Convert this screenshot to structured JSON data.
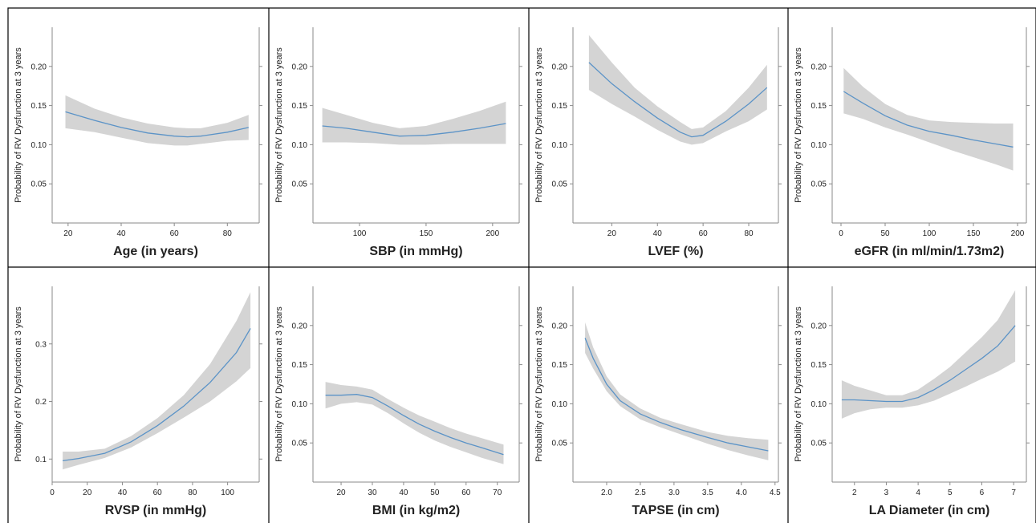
{
  "colors": {
    "band": "#d4d4d4",
    "line": "#5b93c7",
    "axis": "#8a8a8a",
    "text": "#222222",
    "border": "#000000"
  },
  "chart_data": [
    {
      "type": "line",
      "xlabel": "Age (in years)",
      "ylabel": "Probability of RV Dysfunction at 3 years",
      "xlim": [
        14,
        92
      ],
      "ylim": [
        0,
        0.25
      ],
      "xticks": [
        20,
        40,
        60,
        80
      ],
      "xtick_labels": [
        "20",
        "40",
        "60",
        "80"
      ],
      "yticks": [
        0.05,
        0.1,
        0.15,
        0.2
      ],
      "ytick_labels": [
        "0.05",
        "0.10",
        "0.15",
        "0.20"
      ],
      "series": [
        {
          "x": [
            19,
            30,
            40,
            50,
            60,
            65,
            70,
            80,
            88
          ],
          "y": [
            0.142,
            0.131,
            0.122,
            0.115,
            0.111,
            0.11,
            0.111,
            0.116,
            0.122
          ],
          "lower": [
            0.121,
            0.116,
            0.109,
            0.102,
            0.099,
            0.099,
            0.101,
            0.105,
            0.106
          ],
          "upper": [
            0.163,
            0.146,
            0.135,
            0.127,
            0.122,
            0.121,
            0.121,
            0.128,
            0.138
          ]
        }
      ]
    },
    {
      "type": "line",
      "xlabel": "SBP (in mmHg)",
      "ylabel": "Probability of RV Dysfunction at 3 years",
      "xlim": [
        65,
        220
      ],
      "ylim": [
        0,
        0.25
      ],
      "xticks": [
        100,
        150,
        200
      ],
      "xtick_labels": [
        "100",
        "150",
        "200"
      ],
      "yticks": [
        0.05,
        0.1,
        0.15,
        0.2
      ],
      "ytick_labels": [
        "0.05",
        "0.10",
        "0.15",
        "0.20"
      ],
      "series": [
        {
          "x": [
            72,
            90,
            110,
            130,
            150,
            170,
            190,
            210
          ],
          "y": [
            0.124,
            0.121,
            0.116,
            0.111,
            0.112,
            0.116,
            0.121,
            0.127
          ],
          "lower": [
            0.103,
            0.103,
            0.102,
            0.1,
            0.1,
            0.101,
            0.101,
            0.101
          ],
          "upper": [
            0.147,
            0.138,
            0.128,
            0.121,
            0.124,
            0.133,
            0.143,
            0.155
          ]
        }
      ]
    },
    {
      "type": "line",
      "xlabel": "LVEF (%)",
      "ylabel": "Probability of RV Dysfunction at 3 years",
      "xlim": [
        3,
        93
      ],
      "ylim": [
        0,
        0.25
      ],
      "xticks": [
        20,
        40,
        60,
        80
      ],
      "xtick_labels": [
        "20",
        "40",
        "60",
        "80"
      ],
      "yticks": [
        0.05,
        0.1,
        0.15,
        0.2
      ],
      "ytick_labels": [
        "0.05",
        "0.10",
        "0.15",
        "0.20"
      ],
      "series": [
        {
          "x": [
            10,
            20,
            30,
            40,
            50,
            55,
            60,
            70,
            80,
            88
          ],
          "y": [
            0.205,
            0.178,
            0.155,
            0.134,
            0.116,
            0.11,
            0.112,
            0.13,
            0.152,
            0.173
          ],
          "lower": [
            0.17,
            0.152,
            0.136,
            0.119,
            0.104,
            0.1,
            0.102,
            0.117,
            0.13,
            0.145
          ],
          "upper": [
            0.24,
            0.205,
            0.173,
            0.149,
            0.129,
            0.12,
            0.122,
            0.143,
            0.173,
            0.202
          ]
        }
      ]
    },
    {
      "type": "line",
      "xlabel": "eGFR (in ml/min/1.73m2)",
      "ylabel": "Probability of RV Dysfunction at 3 years",
      "xlim": [
        -10,
        210
      ],
      "ylim": [
        0,
        0.25
      ],
      "xticks": [
        0,
        50,
        100,
        150,
        200
      ],
      "xtick_labels": [
        "0",
        "50",
        "100",
        "150",
        "200"
      ],
      "yticks": [
        0.05,
        0.1,
        0.15,
        0.2
      ],
      "ytick_labels": [
        "0.05",
        "0.10",
        "0.15",
        "0.20"
      ],
      "series": [
        {
          "x": [
            3,
            25,
            50,
            75,
            100,
            125,
            150,
            175,
            195
          ],
          "y": [
            0.168,
            0.153,
            0.137,
            0.125,
            0.117,
            0.112,
            0.106,
            0.101,
            0.097
          ],
          "lower": [
            0.14,
            0.133,
            0.122,
            0.113,
            0.103,
            0.093,
            0.084,
            0.075,
            0.067
          ],
          "upper": [
            0.198,
            0.174,
            0.152,
            0.138,
            0.131,
            0.129,
            0.128,
            0.127,
            0.127
          ]
        }
      ]
    },
    {
      "type": "line",
      "xlabel": "RVSP (in mmHg)",
      "ylabel": "Probability of RV Dysfunction at 3 years",
      "xlim": [
        0,
        118
      ],
      "ylim": [
        0.06,
        0.4
      ],
      "xticks": [
        0,
        20,
        40,
        60,
        80,
        100
      ],
      "xtick_labels": [
        "0",
        "20",
        "40",
        "60",
        "80",
        "100"
      ],
      "yticks": [
        0.1,
        0.2,
        0.3
      ],
      "ytick_labels": [
        "0.1",
        "0.2",
        "0.3"
      ],
      "series": [
        {
          "x": [
            6,
            15,
            30,
            45,
            60,
            75,
            90,
            105,
            113
          ],
          "y": [
            0.097,
            0.101,
            0.11,
            0.13,
            0.158,
            0.192,
            0.233,
            0.285,
            0.327
          ],
          "lower": [
            0.082,
            0.09,
            0.102,
            0.12,
            0.145,
            0.172,
            0.2,
            0.235,
            0.258
          ],
          "upper": [
            0.113,
            0.113,
            0.118,
            0.14,
            0.171,
            0.211,
            0.265,
            0.34,
            0.39
          ]
        }
      ]
    },
    {
      "type": "line",
      "xlabel": "BMI (in kg/m2)",
      "ylabel": "Probability of RV Dysfunction at 3 years",
      "xlim": [
        11,
        77
      ],
      "ylim": [
        0,
        0.25
      ],
      "xticks": [
        20,
        30,
        40,
        50,
        60,
        70
      ],
      "xtick_labels": [
        "20",
        "30",
        "40",
        "50",
        "60",
        "70"
      ],
      "yticks": [
        0.05,
        0.1,
        0.15,
        0.2
      ],
      "ytick_labels": [
        "0.05",
        "0.10",
        "0.15",
        "0.20"
      ],
      "series": [
        {
          "x": [
            15,
            20,
            25,
            30,
            35,
            40,
            45,
            50,
            55,
            60,
            65,
            72
          ],
          "y": [
            0.111,
            0.111,
            0.112,
            0.108,
            0.097,
            0.085,
            0.074,
            0.065,
            0.057,
            0.05,
            0.044,
            0.035
          ],
          "lower": [
            0.094,
            0.1,
            0.102,
            0.099,
            0.088,
            0.075,
            0.063,
            0.053,
            0.045,
            0.038,
            0.031,
            0.023
          ],
          "upper": [
            0.128,
            0.124,
            0.122,
            0.118,
            0.106,
            0.095,
            0.085,
            0.077,
            0.069,
            0.062,
            0.056,
            0.048
          ]
        }
      ]
    },
    {
      "type": "line",
      "xlabel": "TAPSE (in cm)",
      "ylabel": "Probability of RV Dysfunction at 3 years",
      "xlim": [
        1.5,
        4.55
      ],
      "ylim": [
        0,
        0.25
      ],
      "xticks": [
        2.0,
        2.5,
        3.0,
        3.5,
        4.0,
        4.5
      ],
      "xtick_labels": [
        "2.0",
        "2.5",
        "3.0",
        "3.5",
        "4.0",
        "4.5"
      ],
      "yticks": [
        0.05,
        0.1,
        0.15,
        0.2
      ],
      "ytick_labels": [
        "0.05",
        "0.10",
        "0.15",
        "0.20"
      ],
      "series": [
        {
          "x": [
            1.68,
            1.8,
            2.0,
            2.2,
            2.5,
            2.8,
            3.1,
            3.5,
            3.8,
            4.1,
            4.4
          ],
          "y": [
            0.184,
            0.158,
            0.125,
            0.104,
            0.087,
            0.076,
            0.067,
            0.057,
            0.05,
            0.045,
            0.04
          ],
          "lower": [
            0.165,
            0.145,
            0.116,
            0.097,
            0.08,
            0.07,
            0.061,
            0.049,
            0.041,
            0.034,
            0.028
          ],
          "upper": [
            0.204,
            0.172,
            0.135,
            0.112,
            0.094,
            0.082,
            0.074,
            0.064,
            0.059,
            0.056,
            0.054
          ]
        }
      ]
    },
    {
      "type": "line",
      "xlabel": "LA Diameter (in cm)",
      "ylabel": "Probability of RV Dysfunction at 3 years",
      "xlim": [
        1.3,
        7.4
      ],
      "ylim": [
        0,
        0.25
      ],
      "xticks": [
        2,
        3,
        4,
        5,
        6,
        7
      ],
      "xtick_labels": [
        "2",
        "3",
        "4",
        "5",
        "6",
        "7"
      ],
      "yticks": [
        0.05,
        0.1,
        0.15,
        0.2
      ],
      "ytick_labels": [
        "0.05",
        "0.10",
        "0.15",
        "0.20"
      ],
      "series": [
        {
          "x": [
            1.6,
            2.0,
            2.5,
            3.0,
            3.5,
            4.0,
            4.5,
            5.0,
            5.5,
            6.0,
            6.5,
            7.05
          ],
          "y": [
            0.105,
            0.105,
            0.104,
            0.103,
            0.103,
            0.108,
            0.118,
            0.13,
            0.144,
            0.158,
            0.174,
            0.2
          ],
          "lower": [
            0.081,
            0.088,
            0.093,
            0.095,
            0.095,
            0.098,
            0.104,
            0.113,
            0.122,
            0.132,
            0.141,
            0.154
          ],
          "upper": [
            0.13,
            0.123,
            0.117,
            0.111,
            0.111,
            0.118,
            0.132,
            0.147,
            0.166,
            0.185,
            0.207,
            0.245
          ]
        }
      ]
    }
  ]
}
